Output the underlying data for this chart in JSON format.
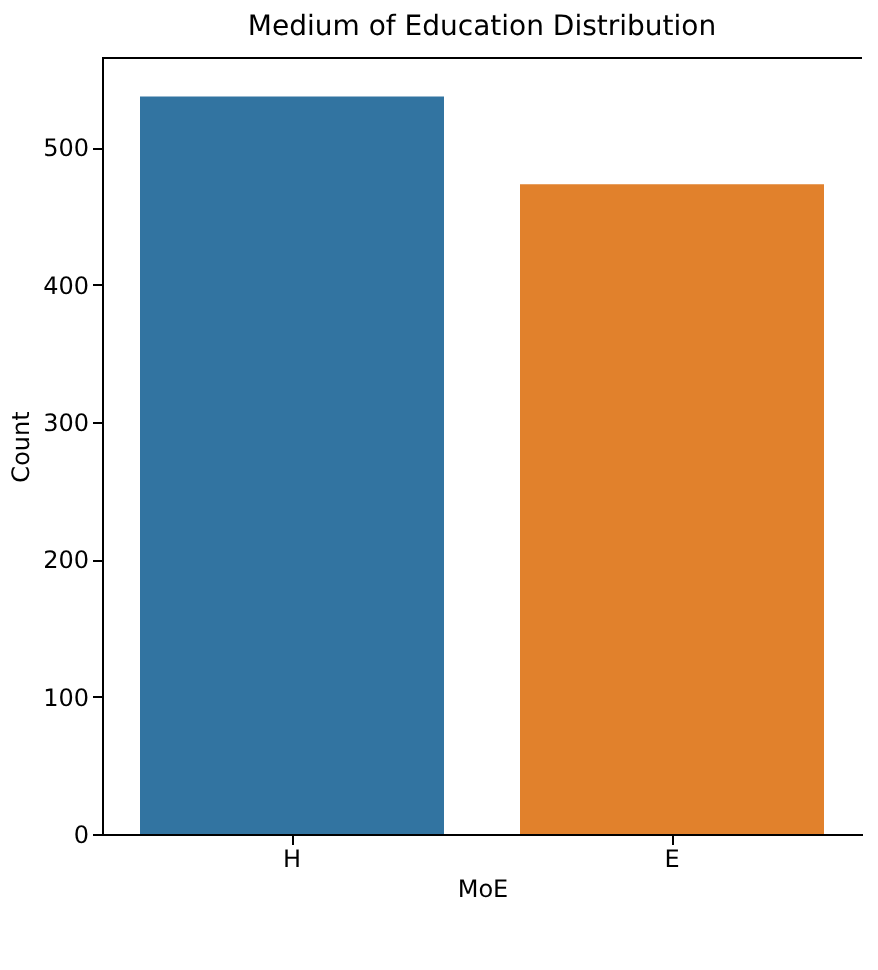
{
  "chart_data": {
    "type": "bar",
    "title": "Medium of Education Distribution",
    "xlabel": "MoE",
    "ylabel": "Count",
    "categories": [
      "H",
      "E"
    ],
    "values": [
      537,
      473
    ],
    "colors": [
      "#3274a1",
      "#e1812c"
    ],
    "ylim": [
      0,
      565
    ],
    "yticks": [
      0,
      100,
      200,
      300,
      400,
      500
    ],
    "grid": false,
    "legend": false
  }
}
